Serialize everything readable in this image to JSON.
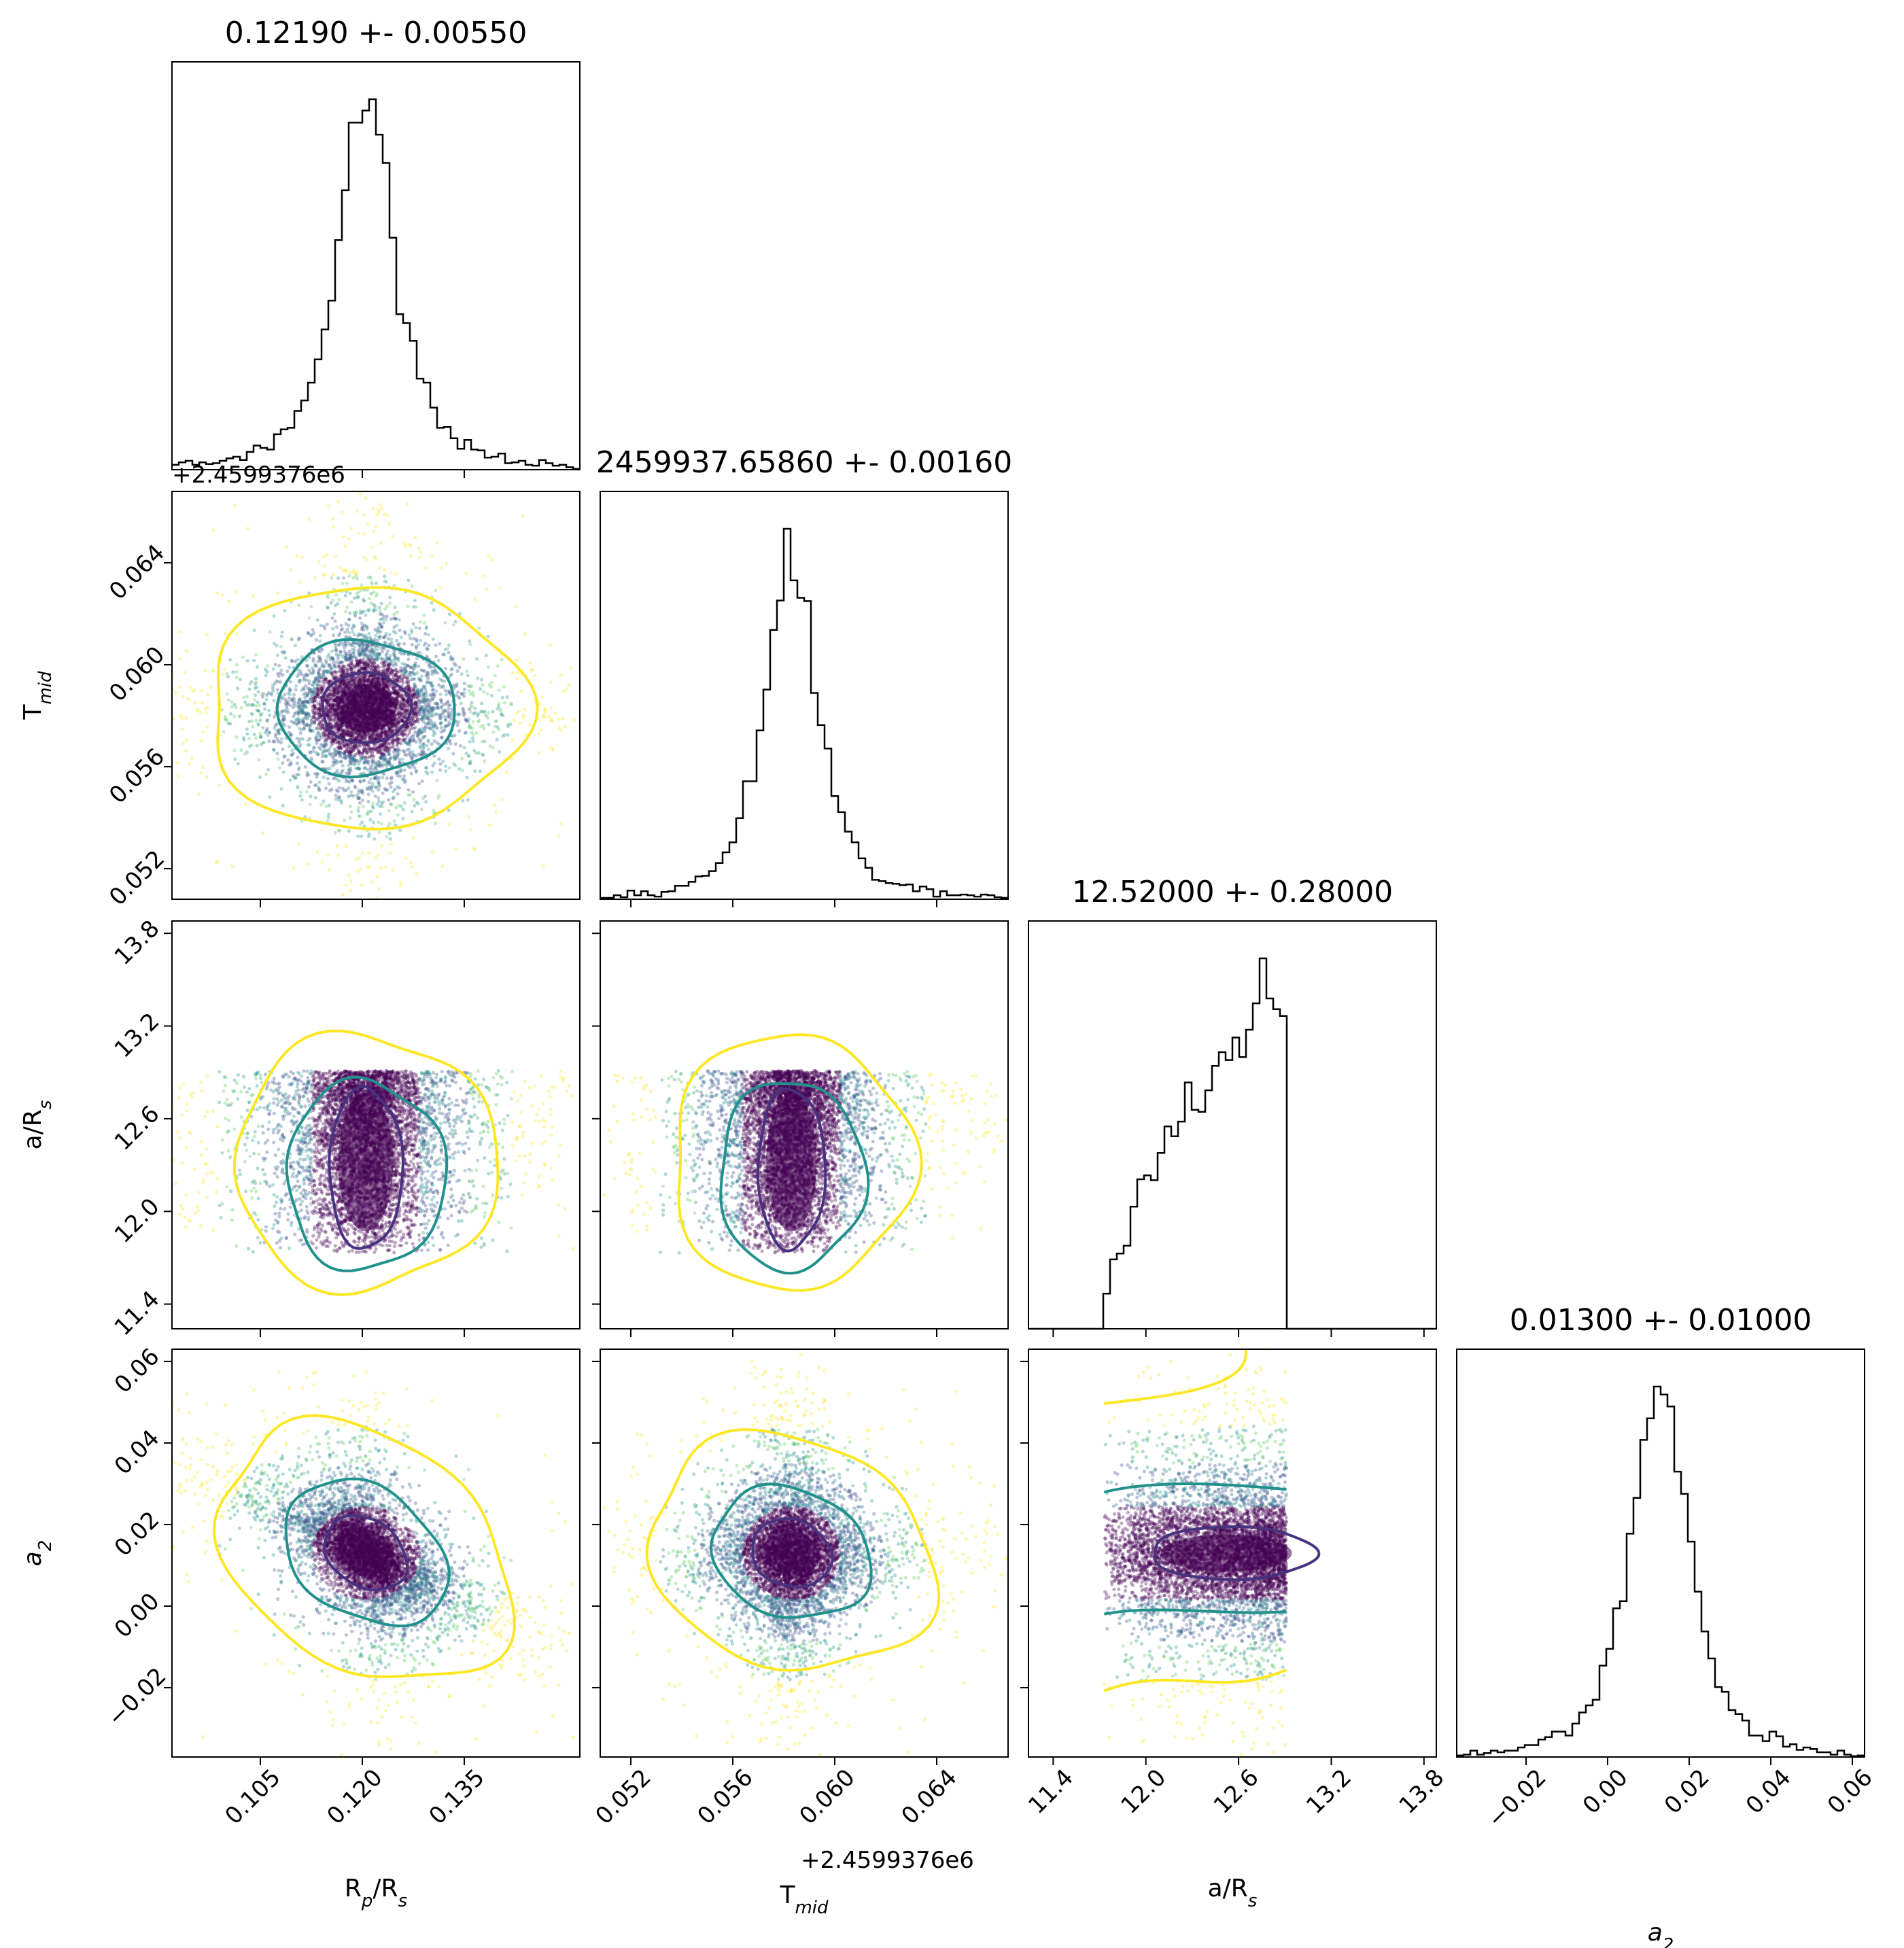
{
  "chart_data": {
    "type": "corner",
    "parameters": [
      {
        "key": "rp",
        "title": "0.12190 +- 0.00550",
        "label_main": "R",
        "label_sub1": "p",
        "label_mid": "/R",
        "label_sub2": "s",
        "range": [
          0.092,
          0.152
        ],
        "ticks": [
          0.105,
          0.12,
          0.135
        ],
        "tick_labels": [
          "0.105",
          "0.120",
          "0.135"
        ]
      },
      {
        "key": "tmid",
        "title": "2459937.65860 +- 0.00160",
        "label_main": "T",
        "label_sub1": "mid",
        "label_mid": "",
        "label_sub2": "",
        "offset": "+2.4599376e6",
        "range": [
          0.0508,
          0.0668
        ],
        "ticks": [
          0.052,
          0.056,
          0.06,
          0.064
        ],
        "tick_labels": [
          "0.052",
          "0.056",
          "0.060",
          "0.064"
        ]
      },
      {
        "key": "a",
        "title": "12.52000 +- 0.28000",
        "label_main": "a",
        "label_sub1": "",
        "label_mid": "/R",
        "label_sub2": "s",
        "range": [
          11.24,
          13.88
        ],
        "ticks": [
          11.4,
          12.0,
          12.6,
          13.2,
          13.8
        ],
        "tick_labels": [
          "11.4",
          "12.0",
          "12.6",
          "13.2",
          "13.8"
        ]
      },
      {
        "key": "a2",
        "title": "0.01300 +- 0.01000",
        "label_main": "a",
        "label_sub1": "2",
        "label_mid": "",
        "label_sub2": "",
        "range": [
          -0.037,
          0.063
        ],
        "ticks": [
          -0.02,
          0.0,
          0.02,
          0.04,
          0.06
        ],
        "tick_labels": [
          "−0.02",
          "0.00",
          "0.02",
          "0.04",
          "0.06"
        ]
      }
    ],
    "truncation": {
      "a": [
        11.73,
        12.91
      ]
    },
    "peak_hist_values": {
      "rp": 0.1219,
      "tmid": 0.0586,
      "a": 12.52,
      "a2": 0.013
    },
    "colors": {
      "inner": "#46327e",
      "middle": "#21918c",
      "outer": "#fde725",
      "points_dense": "#440154",
      "hist": "#000000"
    }
  }
}
